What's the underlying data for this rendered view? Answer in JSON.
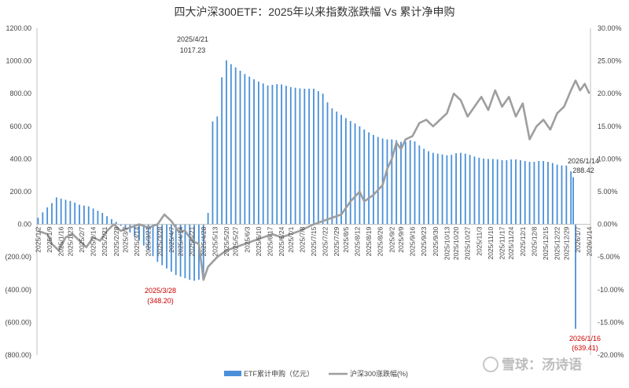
{
  "chart_data": {
    "type": "bar",
    "title": "四大沪深300ETF：2025年以来指数涨跌幅 Vs 累计净申购",
    "y_left": {
      "ylim": [
        -800,
        1200
      ],
      "ticks": [
        1200,
        1000,
        800,
        600,
        400,
        200,
        0,
        -200,
        -400,
        -600,
        -800
      ],
      "tick_labels": [
        "1200.00",
        "1000.00",
        "800.00",
        "600.00",
        "400.00",
        "200.00",
        "0.00",
        "(200.00)",
        "(400.00)",
        "(600.00)",
        "(800.00)"
      ]
    },
    "y_right": {
      "ylim": [
        -20,
        30
      ],
      "ticks": [
        30,
        25,
        20,
        15,
        10,
        5,
        0,
        -5,
        -10,
        -15,
        -20
      ],
      "tick_labels": [
        "30.00%",
        "25.00%",
        "20.00%",
        "15.00%",
        "10.00%",
        "5.00%",
        "0.00%",
        "-5.00%",
        "-10.00%",
        "-15.00%",
        "-20.00%"
      ]
    },
    "x_tick_labels": [
      "2025/1/2",
      "2025/1/9",
      "2025/1/16",
      "2025/1/23",
      "2025/2/7",
      "2025/2/14",
      "2025/2/21",
      "2025/2/28",
      "2025/3/7",
      "2025/3/14",
      "2025/3/21",
      "2025/3/28",
      "2025/4/7",
      "2025/4/14",
      "2025/4/21",
      "2025/4/28",
      "2025/5/13",
      "2025/5/20",
      "2025/5/27",
      "2025/6/3",
      "2025/6/10",
      "2025/6/17",
      "2025/6/24",
      "2025/7/1",
      "2025/7/8",
      "2025/7/15",
      "2025/7/22",
      "2025/7/29",
      "2025/8/5",
      "2025/8/12",
      "2025/8/19",
      "2025/8/26",
      "2025/9/2",
      "2025/9/9",
      "2025/9/16",
      "2025/9/23",
      "2025/9/30",
      "2025/10/13",
      "2025/10/20",
      "2025/10/27",
      "2025/11/3",
      "2025/11/10",
      "2025/11/17",
      "2025/11/24",
      "2025/12/1",
      "2025/12/8",
      "2025/12/15",
      "2025/12/22",
      "2025/12/29",
      "2026/1/7",
      "2026/1/14"
    ],
    "bar_keypoints": [
      [
        0,
        40
      ],
      [
        3,
        90
      ],
      [
        6,
        130
      ],
      [
        8,
        165
      ],
      [
        12,
        150
      ],
      [
        15,
        140
      ],
      [
        18,
        120
      ],
      [
        22,
        110
      ],
      [
        25,
        90
      ],
      [
        28,
        70
      ],
      [
        31,
        40
      ],
      [
        34,
        15
      ],
      [
        36,
        -10
      ],
      [
        40,
        -50
      ],
      [
        44,
        -100
      ],
      [
        48,
        -160
      ],
      [
        52,
        -230
      ],
      [
        56,
        -270
      ],
      [
        60,
        -310
      ],
      [
        64,
        -330
      ],
      [
        66,
        -340
      ],
      [
        69,
        -348.2
      ],
      [
        72,
        -320
      ],
      [
        74,
        70
      ],
      [
        75,
        640
      ],
      [
        77,
        620
      ],
      [
        79,
        700
      ],
      [
        80,
        900
      ],
      [
        81,
        1017.23
      ],
      [
        83,
        990
      ],
      [
        86,
        960
      ],
      [
        90,
        920
      ],
      [
        95,
        880
      ],
      [
        100,
        850
      ],
      [
        105,
        860
      ],
      [
        110,
        840
      ],
      [
        115,
        830
      ],
      [
        120,
        830
      ],
      [
        124,
        800
      ],
      [
        127,
        720
      ],
      [
        131,
        680
      ],
      [
        135,
        640
      ],
      [
        139,
        610
      ],
      [
        143,
        570
      ],
      [
        147,
        540
      ],
      [
        151,
        520
      ],
      [
        155,
        520
      ],
      [
        159,
        500
      ],
      [
        163,
        520
      ],
      [
        167,
        470
      ],
      [
        171,
        440
      ],
      [
        175,
        430
      ],
      [
        179,
        420
      ],
      [
        183,
        440
      ],
      [
        187,
        430
      ],
      [
        191,
        410
      ],
      [
        195,
        400
      ],
      [
        199,
        400
      ],
      [
        203,
        390
      ],
      [
        207,
        400
      ],
      [
        211,
        390
      ],
      [
        215,
        380
      ],
      [
        219,
        390
      ],
      [
        223,
        380
      ],
      [
        227,
        360
      ],
      [
        231,
        360
      ],
      [
        233,
        288.42
      ],
      [
        234,
        -639.41
      ]
    ],
    "line_keypoints": [
      [
        0,
        -1.0
      ],
      [
        4,
        -1.5
      ],
      [
        6,
        -3.0
      ],
      [
        9,
        -4.0
      ],
      [
        12,
        -2.0
      ],
      [
        15,
        -1.5
      ],
      [
        18,
        -2.5
      ],
      [
        21,
        -3.5
      ],
      [
        24,
        -2.0
      ],
      [
        27,
        -2.5
      ],
      [
        30,
        -1.0
      ],
      [
        33,
        0.0
      ],
      [
        36,
        -1.0
      ],
      [
        40,
        -0.5
      ],
      [
        44,
        0.0
      ],
      [
        48,
        -0.5
      ],
      [
        52,
        0.0
      ],
      [
        55,
        1.5
      ],
      [
        58,
        0.5
      ],
      [
        61,
        -1.0
      ],
      [
        64,
        -1.0
      ],
      [
        67,
        -2.5
      ],
      [
        70,
        -3.0
      ],
      [
        72,
        -8.5
      ],
      [
        74,
        -6.5
      ],
      [
        78,
        -5.0
      ],
      [
        82,
        -4.0
      ],
      [
        86,
        -3.5
      ],
      [
        90,
        -3.0
      ],
      [
        94,
        -2.5
      ],
      [
        98,
        -2.0
      ],
      [
        102,
        -1.5
      ],
      [
        106,
        -2.0
      ],
      [
        110,
        -1.5
      ],
      [
        114,
        -1.0
      ],
      [
        117,
        -0.5
      ],
      [
        120,
        0.0
      ],
      [
        124,
        0.5
      ],
      [
        128,
        1.0
      ],
      [
        132,
        1.5
      ],
      [
        136,
        3.5
      ],
      [
        140,
        5.0
      ],
      [
        142,
        3.5
      ],
      [
        146,
        4.5
      ],
      [
        150,
        6.0
      ],
      [
        152,
        8.5
      ],
      [
        154,
        10.0
      ],
      [
        156,
        12.5
      ],
      [
        158,
        11.5
      ],
      [
        160,
        13.0
      ],
      [
        163,
        13.5
      ],
      [
        166,
        15.5
      ],
      [
        169,
        16.0
      ],
      [
        172,
        15.0
      ],
      [
        175,
        16.0
      ],
      [
        178,
        17.0
      ],
      [
        181,
        20.0
      ],
      [
        184,
        19.0
      ],
      [
        187,
        16.5
      ],
      [
        190,
        18.0
      ],
      [
        193,
        19.5
      ],
      [
        196,
        17.5
      ],
      [
        199,
        20.5
      ],
      [
        202,
        18.0
      ],
      [
        205,
        19.5
      ],
      [
        208,
        16.5
      ],
      [
        211,
        18.5
      ],
      [
        214,
        13.0
      ],
      [
        217,
        15.0
      ],
      [
        220,
        16.0
      ],
      [
        223,
        14.5
      ],
      [
        226,
        17.0
      ],
      [
        229,
        18.0
      ],
      [
        232,
        20.5
      ],
      [
        234,
        22.0
      ],
      [
        236,
        20.5
      ],
      [
        238,
        21.5
      ],
      [
        240,
        20.0
      ]
    ],
    "annotations": [
      {
        "date": "2025/4/21",
        "value": "1017.23",
        "color": "#333333"
      },
      {
        "date": "2025/3/28",
        "value": "(348.20)",
        "color": "#cc0000"
      },
      {
        "date": "2026/1/14",
        "value": "288.42",
        "color": "#333333"
      },
      {
        "date": "2026/1/16",
        "value": "(639.41)",
        "color": "#cc0000"
      }
    ],
    "series": [
      {
        "name": "ETF累计申购（亿元）",
        "axis": "left",
        "type": "bar",
        "color": "#4a90d9"
      },
      {
        "name": "沪深300涨跌幅(%)",
        "axis": "right",
        "type": "line",
        "color": "#9e9e9e"
      }
    ],
    "grid": false,
    "legend_position": "bottom-center"
  },
  "watermark": "雪球：汤诗语"
}
